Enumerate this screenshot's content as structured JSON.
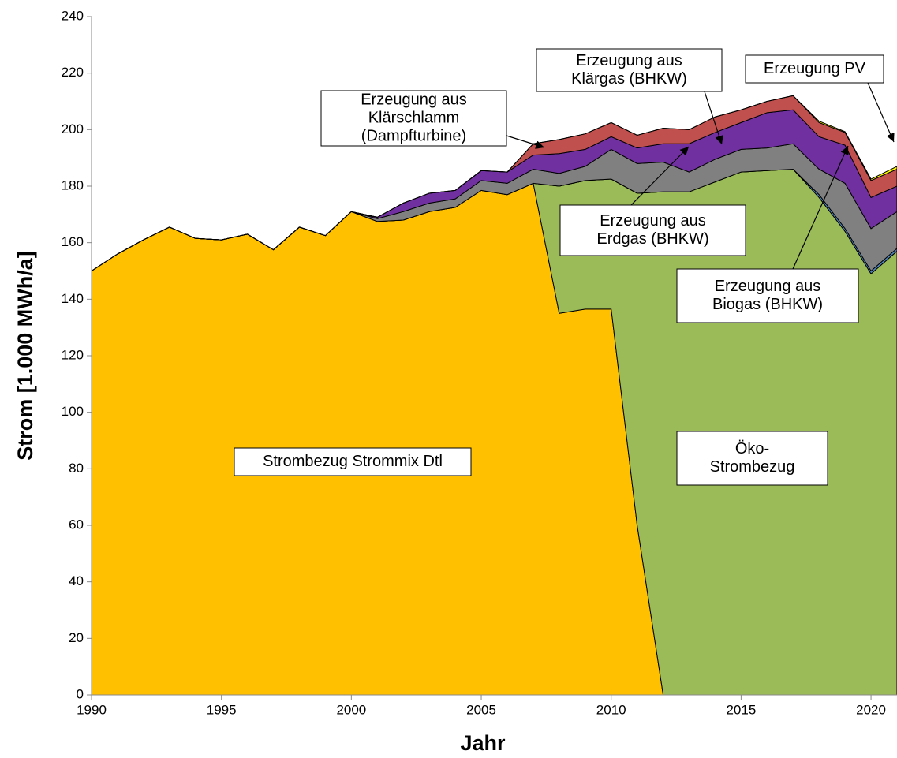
{
  "chart_data": {
    "type": "stacked_area",
    "x": [
      1990,
      1991,
      1992,
      1993,
      1994,
      1995,
      1996,
      1997,
      1998,
      1999,
      2000,
      2001,
      2002,
      2003,
      2004,
      2005,
      2006,
      2007,
      2008,
      2009,
      2010,
      2011,
      2012,
      2013,
      2014,
      2015,
      2016,
      2017,
      2018,
      2019,
      2020,
      2021
    ],
    "series": [
      {
        "name": "Strombezug Strommix Dtl",
        "color": "#FFC000",
        "values": [
          150,
          156,
          161,
          165.5,
          161.5,
          161,
          163,
          157.5,
          165.5,
          162.5,
          171,
          167.5,
          168,
          171,
          172.5,
          178.5,
          177,
          181,
          135,
          136.5,
          136.5,
          60,
          0,
          0,
          0,
          0,
          0,
          0,
          0,
          0,
          0,
          0
        ]
      },
      {
        "name": "Öko-Strombezug",
        "color": "#9BBB59",
        "values": [
          0,
          0,
          0,
          0,
          0,
          0,
          0,
          0,
          0,
          0,
          0,
          0,
          0,
          0,
          0,
          0,
          0,
          0,
          45,
          45.5,
          46,
          117.5,
          178,
          178,
          181.5,
          185,
          185.5,
          186,
          176,
          164,
          149,
          157
        ]
      },
      {
        "name": "Erzeugung aus Biogas (BHKW)",
        "color": "#4F81BD",
        "values": [
          0,
          0,
          0,
          0,
          0,
          0,
          0,
          0,
          0,
          0,
          0,
          0,
          0,
          0,
          0,
          0,
          0,
          0,
          0,
          0,
          0,
          0,
          0,
          0,
          0,
          0,
          0,
          0,
          1,
          1,
          1,
          1
        ]
      },
      {
        "name": "Erzeugung aus Erdgas (BHKW)",
        "color": "#808080",
        "values": [
          0,
          0,
          0,
          0,
          0,
          0,
          0,
          0,
          0,
          0,
          0,
          1,
          3,
          3,
          3,
          3.5,
          4,
          5,
          4.5,
          5,
          10.5,
          10.5,
          10.5,
          7,
          8,
          8,
          8,
          9,
          9,
          16,
          15,
          13
        ]
      },
      {
        "name": "Erzeugung aus Klärgas (BHKW)",
        "color": "#7030A0",
        "values": [
          0,
          0,
          0,
          0,
          0,
          0,
          0,
          0,
          0,
          0,
          0,
          0.5,
          3,
          3.5,
          3,
          3.5,
          4,
          5,
          7,
          6,
          4.5,
          5.5,
          6.5,
          10,
          9.5,
          9.5,
          12.5,
          12,
          11.5,
          13.5,
          11,
          9
        ]
      },
      {
        "name": "Erzeugung aus Klärschlamm (Dampfturbine)",
        "color": "#C0504D",
        "values": [
          0,
          0,
          0,
          0,
          0,
          0,
          0,
          0,
          0,
          0,
          0,
          0,
          0,
          0,
          0,
          0,
          0,
          4,
          5,
          5.5,
          5,
          4.5,
          5.5,
          5,
          5.5,
          4.5,
          4,
          5,
          5,
          4.5,
          6,
          6
        ]
      },
      {
        "name": "Erzeugung PV",
        "color": "#FFFF00",
        "values": [
          0,
          0,
          0,
          0,
          0,
          0,
          0,
          0,
          0,
          0,
          0,
          0,
          0,
          0,
          0,
          0,
          0,
          0,
          0,
          0,
          0,
          0,
          0,
          0,
          0,
          0,
          0,
          0,
          0.5,
          0.3,
          0.5,
          1
        ]
      }
    ],
    "xlim": [
      1990,
      2021
    ],
    "xticks": [
      1990,
      1995,
      2000,
      2005,
      2010,
      2015,
      2020
    ],
    "ylim": [
      0,
      240
    ],
    "yticks": [
      0,
      20,
      40,
      60,
      80,
      100,
      120,
      140,
      160,
      180,
      200,
      220,
      240
    ],
    "xlabel": "Jahr",
    "ylabel": "Strom [1.000 MWh/a]",
    "annotations": [
      [
        "Strombezug Strommix Dtl"
      ],
      [
        "Öko-",
        "Strombezug"
      ],
      [
        "Erzeugung aus",
        "Klärschlamm",
        "(Dampfturbine)"
      ],
      [
        "Erzeugung aus",
        "Klärgas (BHKW)"
      ],
      [
        "Erzeugung PV"
      ],
      [
        "Erzeugung aus",
        "Erdgas (BHKW)"
      ],
      [
        "Erzeugung aus",
        "Biogas (BHKW)"
      ]
    ]
  }
}
